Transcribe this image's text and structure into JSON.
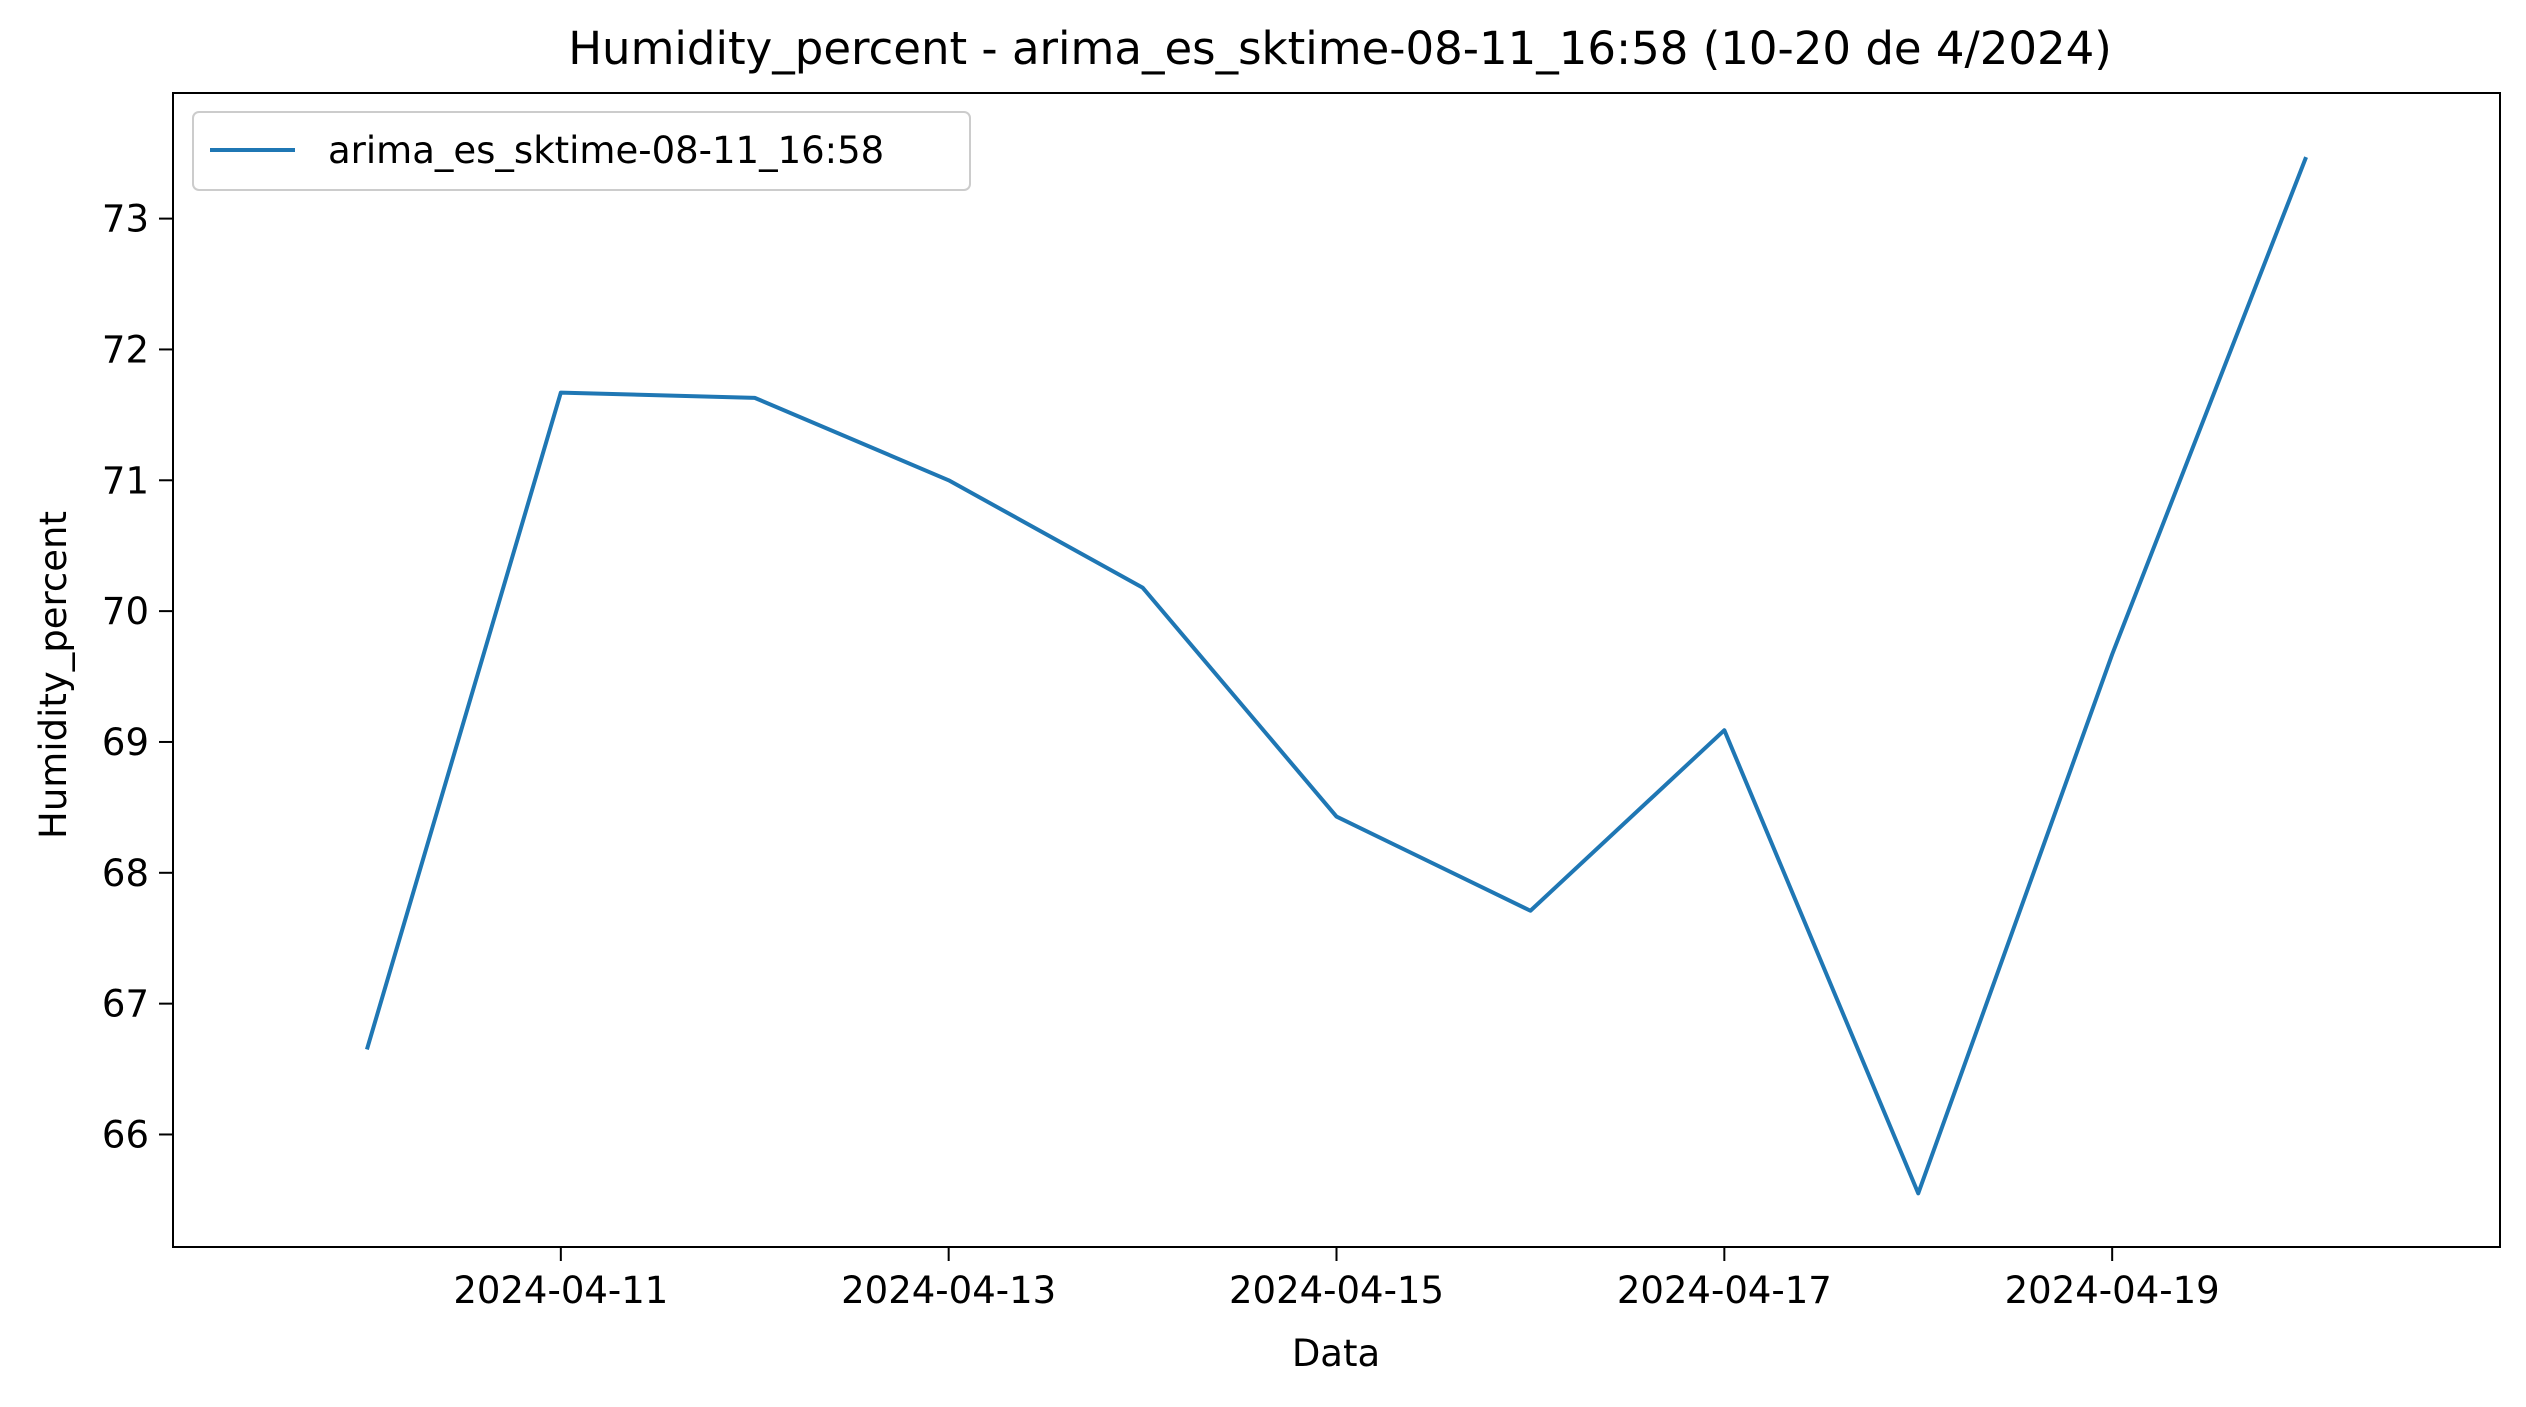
{
  "chart_data": {
    "type": "line",
    "title": "Humidity_percent - arima_es_sktime-08-11_16:58 (10-20 de 4/2024)",
    "xlabel": "Data",
    "ylabel": "Humidity_percent",
    "x": [
      "2024-04-10",
      "2024-04-11",
      "2024-04-12",
      "2024-04-13",
      "2024-04-14",
      "2024-04-15",
      "2024-04-16",
      "2024-04-17",
      "2024-04-18",
      "2024-04-19",
      "2024-04-20"
    ],
    "x_ticks": [
      "2024-04-11",
      "2024-04-13",
      "2024-04-15",
      "2024-04-17",
      "2024-04-19"
    ],
    "y_ticks": [
      66,
      67,
      68,
      69,
      70,
      71,
      72,
      73
    ],
    "ylim": [
      65.14,
      73.96
    ],
    "xlim": [
      "2024-04-09",
      "2024-04-21"
    ],
    "grid": false,
    "legend_position": "upper-left",
    "series": [
      {
        "name": "arima_es_sktime-08-11_16:58",
        "color": "#1f77b4",
        "values": [
          66.65,
          71.67,
          71.63,
          71.0,
          70.18,
          68.43,
          67.71,
          69.09,
          65.55,
          69.67,
          73.47
        ]
      }
    ]
  }
}
